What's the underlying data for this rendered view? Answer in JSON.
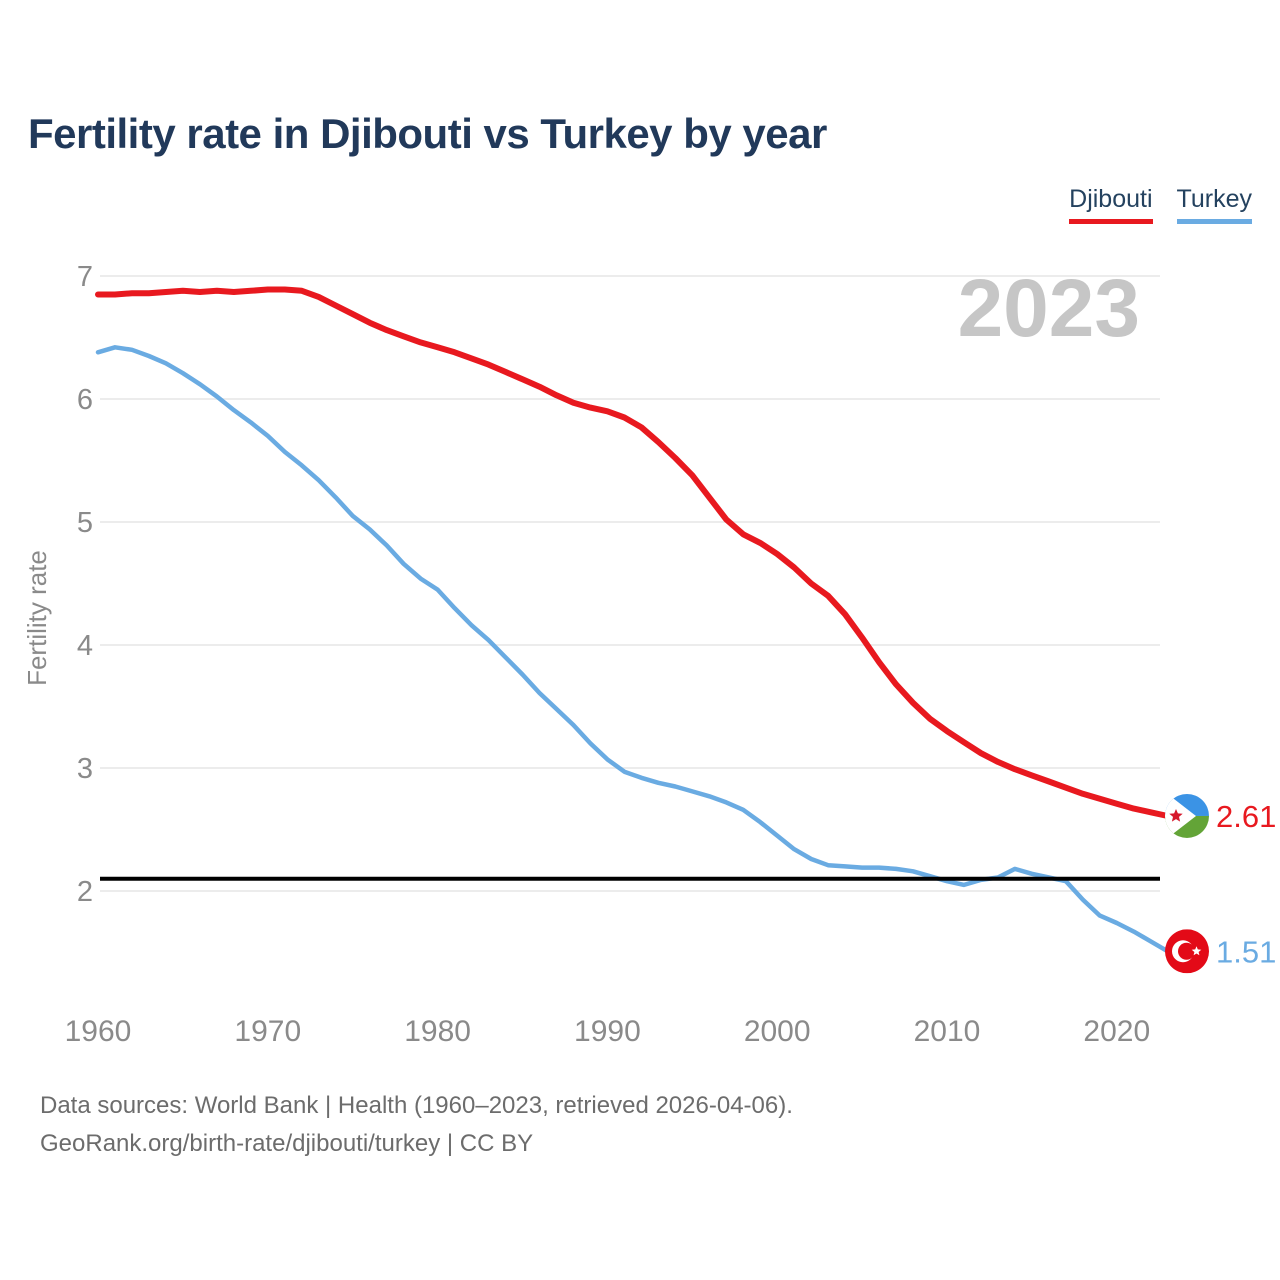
{
  "header": {
    "title": "Fertility rate in Djibouti vs Turkey by year"
  },
  "chart_data": {
    "type": "line",
    "title": "Fertility rate in Djibouti vs Turkey by year",
    "xlabel": "",
    "ylabel": "Fertility rate",
    "watermark": "2023",
    "x_start": 1960,
    "x_end": 2023,
    "x_ticks": [
      1960,
      1970,
      1980,
      1990,
      2000,
      2010,
      2020
    ],
    "y_ticks": [
      2,
      3,
      4,
      5,
      6,
      7
    ],
    "ylim": [
      1.3,
      7.1
    ],
    "grid": "horizontal",
    "legend_position": "top-right",
    "reference_line": {
      "value": 2.1,
      "color": "#000000"
    },
    "colors": {
      "grid": "#ececec",
      "axis_text": "#8a8a8a",
      "title_text": "#21395a",
      "watermark_text": "#c6c6c6",
      "footer_text": "#6c6c6c"
    },
    "flag_colors": {
      "djibouti_blue": "#3b93e5",
      "djibouti_green": "#63a437",
      "djibouti_star": "#d6182c",
      "turkey_red": "#e30a17"
    },
    "series": [
      {
        "name": "Djibouti",
        "color": "#e8191f",
        "flag": "djibouti",
        "end_label": "2.61",
        "values": [
          6.85,
          6.85,
          6.86,
          6.86,
          6.87,
          6.88,
          6.87,
          6.88,
          6.87,
          6.88,
          6.89,
          6.89,
          6.88,
          6.83,
          6.76,
          6.69,
          6.62,
          6.56,
          6.51,
          6.46,
          6.42,
          6.38,
          6.33,
          6.28,
          6.22,
          6.16,
          6.1,
          6.03,
          5.97,
          5.93,
          5.9,
          5.85,
          5.77,
          5.65,
          5.52,
          5.38,
          5.2,
          5.02,
          4.9,
          4.83,
          4.74,
          4.63,
          4.5,
          4.4,
          4.25,
          4.06,
          3.86,
          3.68,
          3.53,
          3.4,
          3.3,
          3.21,
          3.12,
          3.05,
          2.99,
          2.94,
          2.89,
          2.84,
          2.79,
          2.75,
          2.71,
          2.67,
          2.64,
          2.61
        ]
      },
      {
        "name": "Turkey",
        "color": "#6aabe2",
        "flag": "turkey",
        "end_label": "1.51",
        "values": [
          6.38,
          6.42,
          6.4,
          6.35,
          6.29,
          6.21,
          6.12,
          6.02,
          5.91,
          5.81,
          5.7,
          5.57,
          5.46,
          5.34,
          5.2,
          5.05,
          4.94,
          4.81,
          4.66,
          4.54,
          4.45,
          4.3,
          4.16,
          4.04,
          3.9,
          3.76,
          3.61,
          3.48,
          3.35,
          3.2,
          3.07,
          2.97,
          2.92,
          2.88,
          2.85,
          2.81,
          2.77,
          2.72,
          2.66,
          2.56,
          2.45,
          2.34,
          2.26,
          2.21,
          2.2,
          2.19,
          2.19,
          2.18,
          2.16,
          2.12,
          2.08,
          2.05,
          2.09,
          2.11,
          2.18,
          2.14,
          2.11,
          2.08,
          1.93,
          1.8,
          1.74,
          1.67,
          1.59,
          1.51
        ]
      }
    ]
  },
  "footer": {
    "line1": "Data sources: World Bank | Health (1960–2023, retrieved 2026-04-06).",
    "line2": "GeoRank.org/birth-rate/djibouti/turkey | CC BY"
  }
}
